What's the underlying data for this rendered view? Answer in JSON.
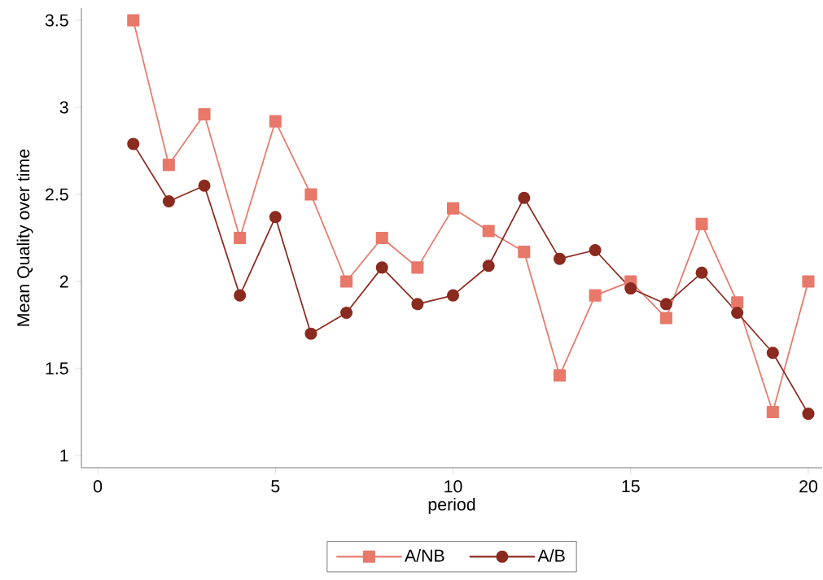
{
  "chart_data": {
    "type": "line",
    "xlabel": "period",
    "ylabel": "Mean Quality over time",
    "x": [
      1,
      2,
      3,
      4,
      5,
      6,
      7,
      8,
      9,
      10,
      11,
      12,
      13,
      14,
      15,
      16,
      17,
      18,
      19,
      20
    ],
    "series": [
      {
        "name": "A/NB",
        "color": "#e8786a",
        "marker": "square",
        "values": [
          3.5,
          2.67,
          2.96,
          2.25,
          2.92,
          2.5,
          2.0,
          2.25,
          2.08,
          2.42,
          2.29,
          2.17,
          1.46,
          1.92,
          2.0,
          1.79,
          2.33,
          1.88,
          1.25,
          2.0
        ]
      },
      {
        "name": "A/B",
        "color": "#8b2a1f",
        "marker": "circle",
        "values": [
          2.79,
          2.46,
          2.55,
          1.92,
          2.37,
          1.7,
          1.82,
          2.08,
          1.87,
          1.92,
          2.09,
          2.48,
          2.13,
          2.18,
          1.96,
          1.87,
          2.05,
          1.82,
          1.59,
          1.24
        ]
      }
    ],
    "xlim": [
      -0.46,
      20.39
    ],
    "ylim": [
      0.93,
      3.57
    ],
    "xticks": [
      0,
      5,
      10,
      15,
      20
    ],
    "yticks": [
      1,
      1.5,
      2,
      2.5,
      3,
      3.5
    ],
    "grid": false,
    "legend": "bottom",
    "line_style": "solid"
  }
}
